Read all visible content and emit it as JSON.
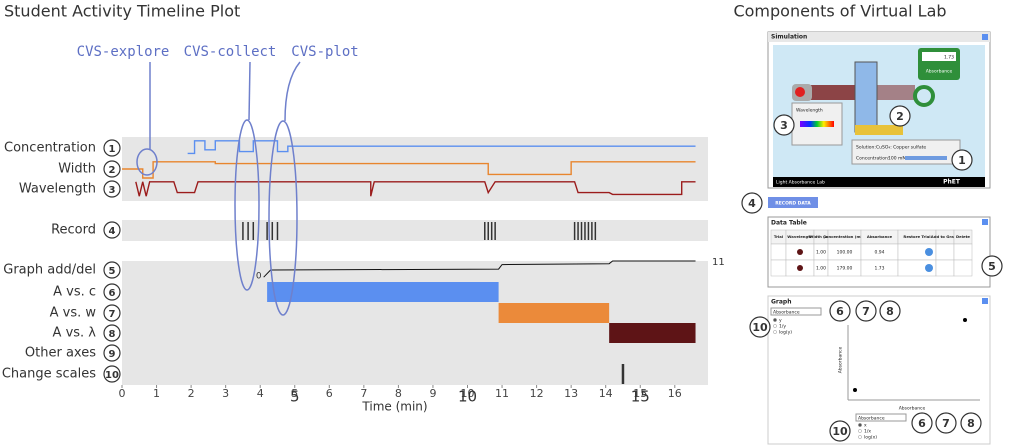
{
  "timeline": {
    "title": "Student Activity Timeline Plot",
    "rows": [
      {
        "label": "Concentration",
        "number": 1
      },
      {
        "label": "Width",
        "number": 2
      },
      {
        "label": "Wavelength",
        "number": 3
      },
      {
        "label": "Record",
        "number": 4
      },
      {
        "label": "Graph add/del",
        "number": 5
      },
      {
        "label": "A vs. c",
        "number": 6
      },
      {
        "label": "A vs. w",
        "number": 7
      },
      {
        "label": "A vs. λ",
        "number": 8
      },
      {
        "label": "Other axes",
        "number": 9
      },
      {
        "label": "Change scales",
        "number": 10
      }
    ],
    "xlabel": "Time (min)",
    "xlim": [
      0,
      16.6
    ],
    "xticks": [
      0,
      1,
      2,
      3,
      4,
      5,
      6,
      7,
      8,
      9,
      10,
      11,
      12,
      13,
      14,
      15,
      16
    ],
    "big_xticks": [
      5,
      10,
      15
    ],
    "annotations": [
      "CVS-explore",
      "CVS-collect",
      "CVS-plot"
    ],
    "traces": [
      {
        "name": "Concentration",
        "color": "#5b8ff0",
        "points": [
          [
            1.9,
            0.2
          ],
          [
            2.1,
            0.2
          ],
          [
            2.1,
            0.9
          ],
          [
            2.4,
            0.9
          ],
          [
            2.4,
            0.4
          ],
          [
            2.7,
            0.4
          ],
          [
            2.7,
            0.9
          ],
          [
            3.4,
            0.9
          ],
          [
            3.4,
            0.3
          ],
          [
            3.8,
            0.3
          ],
          [
            3.8,
            0.9
          ],
          [
            4.5,
            0.9
          ],
          [
            4.5,
            0.3
          ],
          [
            4.8,
            0.3
          ],
          [
            4.8,
            0.6
          ],
          [
            16.6,
            0.6
          ]
        ]
      },
      {
        "name": "Width",
        "color": "#e8852e",
        "points": [
          [
            0,
            0.5
          ],
          [
            0.6,
            0.5
          ],
          [
            0.6,
            0
          ],
          [
            0.9,
            0
          ],
          [
            0.9,
            0.9
          ],
          [
            2.7,
            0.9
          ],
          [
            2.7,
            0.8
          ],
          [
            10.6,
            0.8
          ],
          [
            10.6,
            0.2
          ],
          [
            13,
            0.2
          ],
          [
            13,
            0.9
          ],
          [
            16.6,
            0.9
          ]
        ]
      },
      {
        "name": "Wavelength",
        "color": "#9b1c1c",
        "points": [
          [
            0.4,
            0.9
          ],
          [
            0.5,
            0.1
          ],
          [
            0.6,
            0.9
          ],
          [
            0.7,
            0.1
          ],
          [
            0.8,
            0.9
          ],
          [
            1.5,
            0.9
          ],
          [
            1.6,
            0.3
          ],
          [
            2.1,
            0.3
          ],
          [
            2.2,
            0.9
          ],
          [
            7.2,
            0.9
          ],
          [
            7.2,
            0.1
          ],
          [
            7.3,
            0.9
          ],
          [
            10.5,
            0.9
          ],
          [
            10.6,
            0.3
          ],
          [
            10.8,
            0.9
          ],
          [
            13.1,
            0.9
          ],
          [
            13.2,
            0.3
          ],
          [
            14.1,
            0.3
          ],
          [
            14.2,
            0.2
          ],
          [
            16.2,
            0.2
          ],
          [
            16.2,
            0.9
          ],
          [
            16.6,
            0.9
          ]
        ]
      }
    ],
    "record_times": [
      3.5,
      3.65,
      3.8,
      4.2,
      4.35,
      4.5,
      10.5,
      10.6,
      10.7,
      10.8,
      13.1,
      13.2,
      13.3,
      13.4,
      13.5,
      13.6,
      13.7
    ],
    "graph_count": {
      "points": [
        [
          4.1,
          0.1
        ],
        [
          4.3,
          0.5
        ],
        [
          10.9,
          0.55
        ],
        [
          11,
          0.8
        ],
        [
          14.1,
          0.85
        ],
        [
          14.2,
          1
        ],
        [
          16.6,
          1
        ]
      ],
      "start_label": "0",
      "end_label": "11"
    },
    "bars": [
      {
        "start": 4.2,
        "end": 10.9,
        "color": "#5b8ff0"
      },
      {
        "start": 10.9,
        "end": 14.1,
        "color": "#eb8a3a"
      },
      {
        "start": 14.1,
        "end": 16.6,
        "color": "#5e1416"
      }
    ],
    "scale_changes": [
      14.5
    ]
  },
  "lab": {
    "title": "Components of Virtual Lab",
    "sim": {
      "header": "Simulation",
      "meter_value": "1.73",
      "meter_label": "Absorbance",
      "wavelength": "Wavelength",
      "solution_label": "Solution:",
      "solution": "CuSO₄: Copper sulfate",
      "concentration_label": "Concentration:",
      "concentration": "100 mM",
      "footer": "Light Absorbance Lab",
      "brand": "PhET"
    },
    "record": "RECORD DATA",
    "table": {
      "header": "Data Table",
      "columns": [
        "Trial",
        "Wavelength",
        "Width (cm)",
        "Concentration (mM)",
        "Absorbance",
        "Restore Trial",
        "Add to Graph",
        "Delete"
      ],
      "rows": [
        [
          "1.00",
          "100.00",
          "0.94"
        ],
        [
          "1.00",
          "179.00",
          "1.73"
        ]
      ]
    },
    "graph": {
      "header": "Graph",
      "y_dropdown": "Absorbance",
      "y_options": [
        "y",
        "1/y",
        "log(y)"
      ],
      "y_label": "Absorbance",
      "x_dropdown": "Absorbance",
      "x_options": [
        "x",
        "1/x",
        "log(x)"
      ],
      "x_label": "Absorbance"
    },
    "badges": [
      1,
      2,
      3,
      4,
      5,
      6,
      7,
      8,
      10,
      6,
      7,
      8,
      10
    ]
  }
}
